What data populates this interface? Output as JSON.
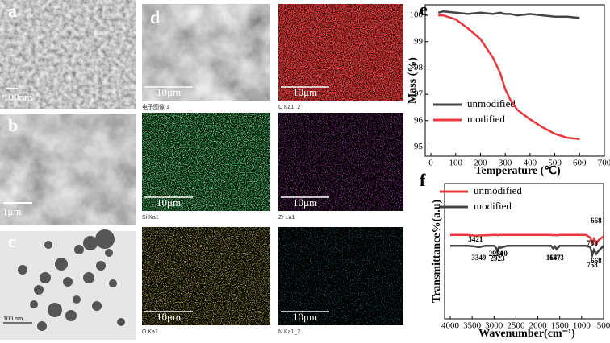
{
  "figure": {
    "panels": [
      {
        "label": "a",
        "scale": "100nm"
      },
      {
        "label": "b",
        "scale": "1μm"
      },
      {
        "label": "c",
        "scale": "100 nm"
      }
    ],
    "eds": {
      "label": "d",
      "maps": [
        {
          "caption": "电子图像 1",
          "scale": "10μm"
        },
        {
          "caption": "C Ka1_2",
          "scale": "10μm"
        },
        {
          "caption": "Si Ka1",
          "scale": "10μm"
        },
        {
          "caption": "Zr La1",
          "scale": "10μm"
        },
        {
          "caption": "O Ka1",
          "scale": "10μm"
        },
        {
          "caption": "N Ka1_2",
          "scale": "10μm"
        }
      ]
    }
  },
  "chart_data": [
    {
      "type": "line",
      "panel_label": "e",
      "xlabel": "Temperature (℃)",
      "ylabel": "Mass (%)",
      "x": [
        30,
        50,
        100,
        150,
        200,
        250,
        280,
        300,
        320,
        350,
        400,
        450,
        500,
        550,
        600
      ],
      "series": [
        {
          "name": "unmodified",
          "color": "#444444",
          "values": [
            100.1,
            100.15,
            100.1,
            100.05,
            100.1,
            100.05,
            100.1,
            100.05,
            100.05,
            100.0,
            100.05,
            100.0,
            99.95,
            99.95,
            99.9
          ]
        },
        {
          "name": "modified",
          "color": "#e8383d",
          "values": [
            100.0,
            100.0,
            99.85,
            99.5,
            99.1,
            98.4,
            97.8,
            97.2,
            96.8,
            96.4,
            96.05,
            95.75,
            95.5,
            95.35,
            95.3
          ]
        }
      ],
      "xlim": [
        0,
        700
      ],
      "xticks": [
        0,
        100,
        200,
        300,
        400,
        500,
        600,
        700
      ],
      "ylim": [
        94.65,
        100.4
      ],
      "yticks": [
        95,
        96,
        97,
        98,
        99,
        100
      ],
      "legend": "lower left"
    },
    {
      "type": "line",
      "panel_label": "f",
      "xlabel": "Wavenumber(cm⁻¹)",
      "ylabel": "Transmittance%(a.u)",
      "x": [
        4000,
        3600,
        3421,
        3349,
        3200,
        3000,
        2954,
        2923,
        2890,
        2860,
        2700,
        2000,
        1700,
        1647,
        1610,
        1573,
        1500,
        1200,
        900,
        800,
        758,
        720,
        668,
        620,
        500
      ],
      "series": [
        {
          "name": "unmodified",
          "color": "#e8383d",
          "values": [
            62,
            62,
            61.5,
            61.6,
            61.8,
            62,
            62,
            61.8,
            62,
            62,
            62,
            62,
            62,
            61.8,
            62,
            61.8,
            62,
            62,
            62,
            60,
            56,
            59,
            55,
            58,
            61
          ]
        },
        {
          "name": "modified",
          "color": "#444444",
          "values": [
            54,
            54,
            53.5,
            53,
            54,
            54,
            52.5,
            50,
            53,
            52.5,
            54,
            54,
            54,
            52,
            53.5,
            51.5,
            54,
            54,
            54,
            53,
            47,
            51,
            48,
            50,
            54
          ]
        }
      ],
      "xlim": [
        4000,
        500
      ],
      "xticks": [
        4000,
        3500,
        3000,
        2500,
        2000,
        1500,
        1000,
        500
      ],
      "ylim": [
        0,
        100
      ],
      "legend": "upper left",
      "annotations": [
        {
          "text": "3421",
          "x": 3421,
          "y": 58.3
        },
        {
          "text": "3349",
          "x": 3349,
          "y": 44.6
        },
        {
          "text": "2954",
          "x": 2954,
          "y": 47.6
        },
        {
          "text": "2923",
          "x": 2923,
          "y": 44
        },
        {
          "text": "2860",
          "x": 2860,
          "y": 47.6
        },
        {
          "text": "1647",
          "x": 1647,
          "y": 44.6
        },
        {
          "text": "1573",
          "x": 1573,
          "y": 44.6
        },
        {
          "text": "758",
          "x": 758,
          "y": 55.4
        },
        {
          "text": "668",
          "x": 668,
          "y": 72
        },
        {
          "text": "758",
          "x": 758,
          "y": 39.3
        },
        {
          "text": "668",
          "x": 668,
          "y": 42.3
        }
      ]
    }
  ]
}
